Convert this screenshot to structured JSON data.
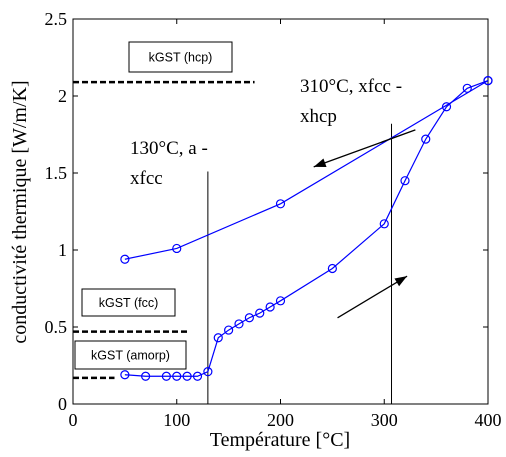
{
  "chart_data": {
    "type": "line",
    "xlabel": "Température [°C]",
    "ylabel": "conductivité thermique [W/m/K]",
    "xlim": [
      0,
      400
    ],
    "ylim": [
      0,
      2.5
    ],
    "xticks": [
      0,
      100,
      200,
      300,
      400
    ],
    "yticks": [
      0,
      0.5,
      1,
      1.5,
      2,
      2.5
    ],
    "grid": false,
    "series": [
      {
        "color": "#0000ff",
        "marker": "circle",
        "x": [
          50,
          70,
          90,
          100,
          110,
          120,
          130,
          140,
          150,
          160,
          170,
          180,
          190,
          200,
          250,
          300,
          320,
          340,
          360,
          380,
          400
        ],
        "y": [
          0.19,
          0.18,
          0.18,
          0.18,
          0.18,
          0.18,
          0.21,
          0.43,
          0.48,
          0.52,
          0.56,
          0.59,
          0.63,
          0.67,
          0.88,
          1.17,
          1.45,
          1.72,
          1.93,
          2.05,
          2.1
        ]
      },
      {
        "color": "#0000ff",
        "marker": "circle",
        "x": [
          50,
          100,
          200,
          400
        ],
        "y": [
          0.94,
          1.01,
          1.3,
          2.1
        ]
      }
    ],
    "reference_lines": [
      {
        "label": "kGST (hcp)",
        "y": 2.09,
        "x_range": [
          0,
          175
        ]
      },
      {
        "label": "kGST (fcc)",
        "y": 0.47,
        "x_range": [
          0,
          110
        ]
      },
      {
        "label": "kGST (amorp)",
        "y": 0.17,
        "x_range": [
          0,
          40
        ]
      }
    ],
    "vertical_lines": [
      {
        "x": 130,
        "y_range": [
          0,
          1.51
        ]
      },
      {
        "x": 307,
        "y_range": [
          0,
          1.82
        ]
      }
    ],
    "annotations": [
      {
        "lines": [
          "310°C, xfcc -",
          "xhcp"
        ]
      },
      {
        "lines": [
          "130°C, a -",
          "xfcc"
        ]
      }
    ],
    "arrows": [
      {
        "direction": "left",
        "from": [
          330,
          1.78
        ],
        "to": [
          232,
          1.54
        ]
      },
      {
        "direction": "right",
        "from": [
          255,
          0.56
        ],
        "to": [
          322,
          0.83
        ]
      }
    ]
  }
}
